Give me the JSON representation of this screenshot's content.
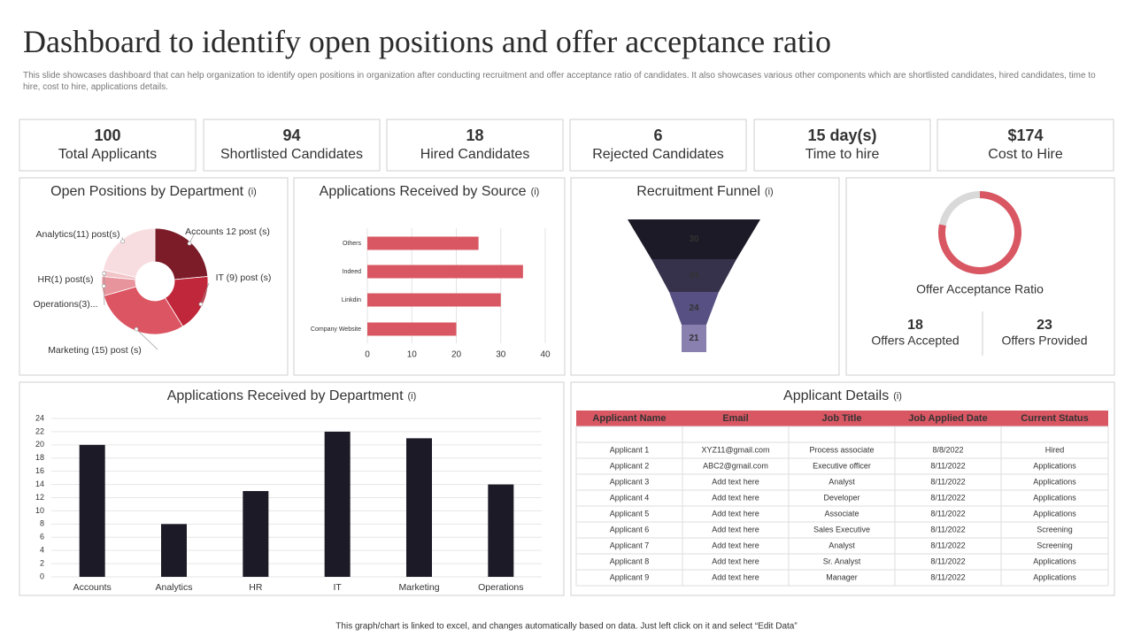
{
  "header": {
    "title": "Dashboard to identify open positions and offer acceptance ratio",
    "subtitle": "This slide showcases dashboard that can help organization to identify open positions in organization after conducting recruitment and offer acceptance ratio of candidates. It also showcases various other components which are shortlisted candidates, hired candidates, time to hire, cost to hire, applications details."
  },
  "kpis": [
    {
      "value": "100",
      "label": "Total Applicants"
    },
    {
      "value": "94",
      "label": "Shortlisted Candidates"
    },
    {
      "value": "18",
      "label": "Hired Candidates"
    },
    {
      "value": "6",
      "label": "Rejected Candidates"
    },
    {
      "value": "15 day(s)",
      "label": "Time to hire"
    },
    {
      "value": "$174",
      "label": "Cost to Hire"
    }
  ],
  "chart_data": [
    {
      "type": "pie",
      "title": "Open Positions by Department",
      "title_note": "(i)",
      "categories": [
        "Accounts 12 post (s)",
        "IT (9) post (s)",
        "Marketing (15) post (s)",
        "Operations(3)...",
        "HR(1) post(s)",
        "Analytics(11) post(s)"
      ],
      "values": [
        12,
        9,
        15,
        3,
        1,
        11
      ],
      "colors": [
        "#7b1c28",
        "#c0273a",
        "#dc5563",
        "#e8949c",
        "#f2c4c8",
        "#f8dde0"
      ]
    },
    {
      "type": "bar",
      "orientation": "horizontal",
      "title": "Applications Received by Source",
      "title_note": "(i)",
      "categories": [
        "Others",
        "Indeed",
        "Linkdin",
        "Company Website"
      ],
      "values": [
        25,
        35,
        30,
        20
      ],
      "color": "#d95763",
      "xlim": [
        0,
        40
      ],
      "xticks": [
        0,
        10,
        20,
        30,
        40
      ],
      "grid": true
    },
    {
      "type": "funnel",
      "title": "Recruitment Funnel",
      "title_note": "(i)",
      "values": [
        30,
        24,
        24,
        21
      ],
      "colors": [
        "#1c1a26",
        "#37324c",
        "#575082",
        "#8a80b0"
      ]
    },
    {
      "type": "donut",
      "title": "Offer Acceptance Ratio",
      "categories": [
        "Offers Accepted",
        "Offers Provided"
      ],
      "values": [
        18,
        23
      ],
      "color": "#d95763",
      "track_color": "#d9d9d9"
    },
    {
      "type": "bar",
      "orientation": "vertical",
      "title": "Applications Received by Department",
      "title_note": "(i)",
      "categories": [
        "Accounts",
        "Analytics",
        "HR",
        "IT",
        "Marketing",
        "Operations"
      ],
      "values": [
        20,
        8,
        13,
        22,
        21,
        14
      ],
      "color": "#1c1a26",
      "ylim": [
        0,
        24
      ],
      "yticks": [
        0,
        2,
        4,
        6,
        8,
        10,
        12,
        14,
        16,
        18,
        20,
        22,
        24
      ],
      "grid": true
    }
  ],
  "table": {
    "title": "Applicant Details",
    "title_note": "(i)",
    "columns": [
      "Applicant Name",
      "Email",
      "Job Title",
      "Job Applied Date",
      "Current Status"
    ],
    "rows": [
      [
        "Applicant 1",
        "XYZ11@gmail.com",
        "Process associate",
        "8/8/2022",
        "Hired"
      ],
      [
        "Applicant 2",
        "ABC2@gmail.com",
        "Executive officer",
        "8/11/2022",
        "Applications"
      ],
      [
        "Applicant 3",
        "Add text here",
        "Analyst",
        "8/11/2022",
        "Applications"
      ],
      [
        "Applicant 4",
        "Add text here",
        "Developer",
        "8/11/2022",
        "Applications"
      ],
      [
        "Applicant 5",
        "Add text here",
        "Associate",
        "8/11/2022",
        "Applications"
      ],
      [
        "Applicant 6",
        "Add text here",
        "Sales Executive",
        "8/11/2022",
        "Screening"
      ],
      [
        "Applicant 7",
        "Add text here",
        "Analyst",
        "8/11/2022",
        "Screening"
      ],
      [
        "Applicant 8",
        "Add text here",
        "Sr. Analyst",
        "8/11/2022",
        "Applications"
      ],
      [
        "Applicant 9",
        "Add text here",
        "Manager",
        "8/11/2022",
        "Applications"
      ]
    ]
  },
  "footer": "This graph/chart is linked to excel, and changes automatically based on data. Just left click on it and select “Edit Data”"
}
